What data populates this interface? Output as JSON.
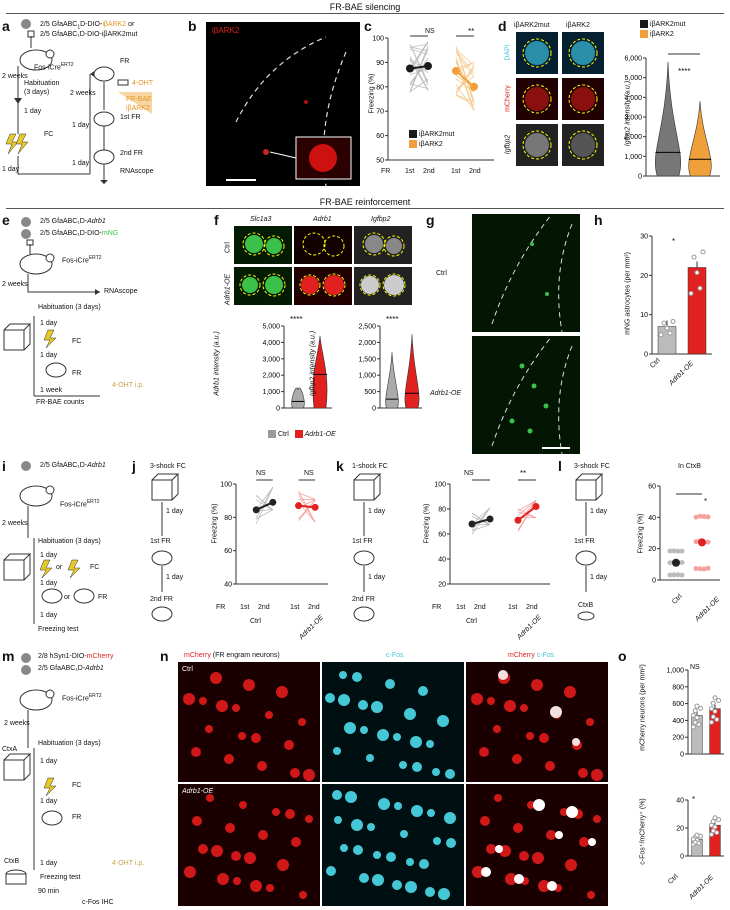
{
  "sections": {
    "top": "FR-BAE silencing",
    "mid": "FR-BAE reinforcement"
  },
  "panels": {
    "a": {
      "label": "a",
      "virus1_prefix": "2/5 GfaABC",
      "virus1_suffix": "D-DIO-",
      "virus1_highlight": "iβARK2",
      "virus1_or": "or",
      "virus2": "2/5 GfaABC₁D-DIO-iβARK2mut",
      "mouse": "Fos-iCre",
      "mouse_sup": "ERT2",
      "weeks1": "2 weeks",
      "habituation": "Habituation",
      "habituation2": "(3 days)",
      "day1": "1 day",
      "fc": "FC",
      "day2": "1 day",
      "fr": "FR",
      "ohtt": "4-OHT",
      "weeks2": "2 weeks",
      "frbae": "FR-BAE",
      "frbae_gene": "iβARK2",
      "day3": "1 day",
      "first_fr": "1st FR",
      "day4": "1 day",
      "second_fr": "2nd FR",
      "rnascope": "RNAscope"
    },
    "b": {
      "label": "b",
      "stain": "iβARK2"
    },
    "c": {
      "label": "c",
      "ylabel": "Freezing (%)",
      "ns": "NS",
      "sig": "**",
      "legend1": "iβARK2mut",
      "legend2": "iβARK2",
      "fr": "FR",
      "x1": "1st",
      "x2": "2nd",
      "x3": "1st",
      "x4": "2nd"
    },
    "d": {
      "label": "d",
      "col1": "iβARK2mut",
      "col2": "iβARK2",
      "row1": "DAPI",
      "row2": "mCherry",
      "row3": "Igfbp2",
      "legend1": "iβARK2mut",
      "legend2": "iβARK2",
      "sig": "****",
      "ylabel": "Igfbp2 intensity (a.u.)"
    },
    "e": {
      "label": "e",
      "virus1": "2/5 GfaABC₁D-Adrb1",
      "virus2_prefix": "2/5 GfaABC₁D-DIO-",
      "virus2_highlight": "mNG",
      "mouse": "Fos-iCre",
      "mouse_sup": "ERT2",
      "weeks": "2 weeks",
      "rnascope": "RNAscope",
      "habituation": "Habituation (3 days)",
      "day1": "1 day",
      "fc": "FC",
      "day2": "1 day",
      "fr": "FR",
      "week": "1 week",
      "ohtt": "4-OHT i.p.",
      "counts": "FR-BAE counts"
    },
    "f": {
      "label": "f",
      "col1": "Slc1a3",
      "col2": "Adrb1",
      "col3": "Igfbp2",
      "row1": "Ctrl",
      "row2": "Adrb1-OE",
      "sig1": "****",
      "sig2": "****",
      "ylabel1": "Adrb1 intensity (a.u.)",
      "ylabel2": "Igfbp2 intensity (a.u.)",
      "legend1": "Ctrl",
      "legend2": "Adrb1-OE"
    },
    "g": {
      "label": "g",
      "row1": "Ctrl",
      "row2": "Adrb1-OE"
    },
    "h": {
      "label": "h",
      "ylabel": "mNG astrocytes (per mm²)",
      "sig": "*",
      "x1": "Ctrl",
      "x2": "Adrb1-OE"
    },
    "i": {
      "label": "i",
      "virus": "2/5 GfaABC₁D-Adrb1",
      "mouse": "Fos-iCre",
      "mouse_sup": "ERT2",
      "weeks": "2 weeks",
      "habituation": "Habituation (3 days)",
      "day1": "1 day",
      "or1": "or",
      "fc": "FC",
      "day2": "1 day",
      "or2": "or",
      "fr": "FR",
      "day3": "1 day",
      "test": "Freezing test"
    },
    "j": {
      "label": "j",
      "title": "3-shock FC",
      "day1": "1 day",
      "fr1": "1st FR",
      "day2": "1 day",
      "fr2": "2nd FR",
      "ylabel": "Freezing (%)",
      "ns1": "NS",
      "ns2": "NS",
      "fr": "FR",
      "x1": "1st",
      "x2": "2nd",
      "x3": "1st",
      "x4": "2nd",
      "g1": "Ctrl",
      "g2": "Adrb1-OE"
    },
    "k": {
      "label": "k",
      "title": "1-shock FC",
      "day1": "1 day",
      "fr1": "1st FR",
      "day2": "1 day",
      "fr2": "2nd FR",
      "ylabel": "Freezing (%)",
      "ns": "NS",
      "sig": "**",
      "fr": "FR",
      "x1": "1st",
      "x2": "2nd",
      "x3": "1st",
      "x4": "2nd",
      "g1": "Ctrl",
      "g2": "Adrb1-OE"
    },
    "l": {
      "label": "l",
      "title": "3-shock FC",
      "day1": "1 day",
      "fr1": "1st FR",
      "day2": "1 day",
      "ctx": "CtxB",
      "heading": "In CtxB",
      "ylabel": "Freezing (%)",
      "sig": "*",
      "x1": "Ctrl",
      "x2": "Adrb1-OE"
    },
    "m": {
      "label": "m",
      "virus1_prefix": "2/8 hSyn1-DIO-",
      "virus1_highlight": "mCherry",
      "virus2": "2/5 GfaABC₁D-Adrb1",
      "mouse": "Fos-iCre",
      "mouse_sup": "ERT2",
      "weeks": "2 weeks",
      "ctxa": "CtxA",
      "habituation": "Habituation (3 days)",
      "day1": "1 day",
      "fc": "FC",
      "day2": "1 day",
      "fr": "FR",
      "day3": "1 day",
      "ohtt": "4-OHT i.p.",
      "ctxb": "CtxB",
      "test": "Freezing test",
      "min": "90 min",
      "ihc": "c-Fos IHC"
    },
    "n": {
      "label": "n",
      "col1_a": "mCherry",
      "col1_b": "(FR engram neurons)",
      "col2": "c-Fos",
      "col3_a": "mCherry",
      "col3_b": "c-Fos",
      "row1": "Ctrl",
      "row2": "Adrb1-OE"
    },
    "o": {
      "label": "o",
      "ns": "NS",
      "ylabel1": "mCherry neurons (per mm²)",
      "sig": "*",
      "ylabel2": "c-Fos⁺/mCherry⁺ (%)",
      "x1": "Ctrl",
      "x2": "Adrb1-OE"
    }
  },
  "colors": {
    "mut": "#1a1a1a",
    "bark2": "#f0a03a",
    "ctrl": "#9a9a9a",
    "oe": "#e0211f",
    "cyan": "#46c7d6",
    "green": "#3bc04a"
  },
  "chart_data": [
    {
      "id": "c",
      "type": "line",
      "ylabel": "Freezing (%)",
      "ylim": [
        50,
        100
      ],
      "yticks": [
        50,
        60,
        70,
        80,
        90,
        100
      ],
      "series": [
        {
          "name": "iβARK2mut",
          "mean": [
            87.5,
            88.5
          ]
        },
        {
          "name": "iβARK2",
          "mean": [
            86.5,
            80
          ]
        }
      ]
    },
    {
      "id": "d",
      "type": "violin",
      "ylabel": "Igfbp2 intensity (a.u.)",
      "ylim": [
        0,
        6000
      ],
      "yticks": [
        0,
        1000,
        2000,
        3000,
        4000,
        5000,
        6000
      ],
      "series": [
        {
          "name": "iβARK2mut",
          "median": 1200
        },
        {
          "name": "iβARK2",
          "median": 850
        }
      ]
    },
    {
      "id": "f1",
      "type": "violin",
      "ylabel": "Adrb1 intensity (a.u.)",
      "ylim": [
        0,
        5000
      ],
      "yticks": [
        0,
        1000,
        2000,
        3000,
        4000,
        5000
      ],
      "series": [
        {
          "name": "Ctrl",
          "median": 400
        },
        {
          "name": "Adrb1-OE",
          "median": 2050
        }
      ]
    },
    {
      "id": "f2",
      "type": "violin",
      "ylabel": "Igfbp2 intensity (a.u.)",
      "ylim": [
        0,
        2500
      ],
      "yticks": [
        0,
        500,
        1000,
        1500,
        2000,
        2500
      ],
      "series": [
        {
          "name": "Ctrl",
          "median": 270
        },
        {
          "name": "Adrb1-OE",
          "median": 450
        }
      ]
    },
    {
      "id": "h",
      "type": "bar",
      "ylabel": "mNG astrocytes (per mm²)",
      "ylim": [
        0,
        30
      ],
      "yticks": [
        0,
        10,
        20,
        30
      ],
      "categories": [
        "Ctrl",
        "Adrb1-OE"
      ],
      "values": [
        7,
        22
      ]
    },
    {
      "id": "j",
      "type": "line",
      "ylabel": "Freezing (%)",
      "ylim": [
        40,
        100
      ],
      "yticks": [
        40,
        60,
        80,
        100
      ],
      "series": [
        {
          "name": "Ctrl",
          "mean": [
            84.5,
            89
          ]
        },
        {
          "name": "Adrb1-OE",
          "mean": [
            87,
            86
          ]
        }
      ]
    },
    {
      "id": "k",
      "type": "line",
      "ylabel": "Freezing (%)",
      "ylim": [
        20,
        100
      ],
      "yticks": [
        20,
        40,
        60,
        80,
        100
      ],
      "series": [
        {
          "name": "Ctrl",
          "mean": [
            68,
            72
          ]
        },
        {
          "name": "Adrb1-OE",
          "mean": [
            71,
            82
          ]
        }
      ]
    },
    {
      "id": "l",
      "type": "scatter",
      "ylabel": "Freezing (%)",
      "ylim": [
        0,
        60
      ],
      "yticks": [
        0,
        20,
        40,
        60
      ],
      "categories": [
        "Ctrl",
        "Adrb1-OE"
      ],
      "values": [
        11,
        24
      ]
    },
    {
      "id": "o1",
      "type": "bar",
      "ylabel": "mCherry neurons (per mm²)",
      "ylim": [
        0,
        1000
      ],
      "yticks": [
        0,
        200,
        400,
        600,
        800,
        1000
      ],
      "categories": [
        "Ctrl",
        "Adrb1-OE"
      ],
      "values": [
        460,
        540
      ]
    },
    {
      "id": "o2",
      "type": "bar",
      "ylabel": "c-Fos⁺/mCherry⁺ (%)",
      "ylim": [
        0,
        40
      ],
      "yticks": [
        0,
        20,
        40
      ],
      "categories": [
        "Ctrl",
        "Adrb1-OE"
      ],
      "values": [
        12,
        22
      ]
    }
  ]
}
